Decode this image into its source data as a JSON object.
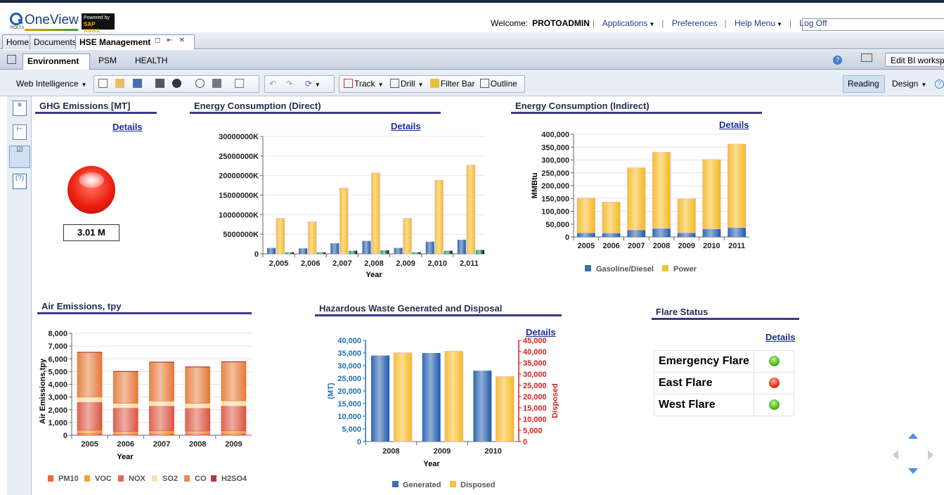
{
  "app": {
    "logo_name": "OneView",
    "logo_sub": "ROLTA",
    "hana_line1": "Powered by",
    "hana_line2": "SAP HANA",
    "welcome_label": "Welcome:",
    "user": "PROTOADMIN",
    "applications": "Applications",
    "preferences": "Preferences",
    "help_menu": "Help Menu",
    "logoff": "Log Off"
  },
  "doc_tabs": [
    "Home",
    "Documents",
    "HSE Management"
  ],
  "sub_tabs": [
    "Environment",
    "PSM",
    "HEALTH"
  ],
  "edit_bi": "Edit BI workspace",
  "toolbar": {
    "web_intelligence": "Web Intelligence",
    "track": "Track",
    "drill": "Drill",
    "filter_bar": "Filter Bar",
    "outline": "Outline",
    "reading": "Reading",
    "design": "Design"
  },
  "details_label": "Details",
  "ghg": {
    "title": "GHG Emissions [MT]",
    "value": "3.01 M",
    "status_color": "#e8301a"
  },
  "energy_direct": {
    "title": "Energy Consumption (Direct)",
    "chart_data": {
      "type": "bar",
      "categories": [
        "2,005",
        "2,006",
        "2,007",
        "2,008",
        "2,009",
        "2,010",
        "2,011"
      ],
      "xlabel": "Year",
      "ylim": [
        0,
        30000000
      ],
      "yticks": [
        "0",
        "5000000K",
        "10000000K",
        "15000000K",
        "20000000K",
        "25000000K",
        "30000000K"
      ],
      "series": [
        {
          "color": "#3a6fb5",
          "values": [
            1500000,
            1400000,
            2700000,
            3300000,
            1500000,
            3100000,
            3600000
          ]
        },
        {
          "color": "#f5c23a",
          "values": [
            9100000,
            8200000,
            16800000,
            20700000,
            9100000,
            18800000,
            22700000
          ]
        },
        {
          "color": "#1fa878",
          "values": [
            400000,
            400000,
            800000,
            900000,
            400000,
            800000,
            1000000
          ]
        }
      ]
    }
  },
  "energy_indirect": {
    "title": "Energy Consumption (Indirect)",
    "chart_data": {
      "type": "bar",
      "stacked": true,
      "categories": [
        "2005",
        "2006",
        "2007",
        "2008",
        "2009",
        "2010",
        "2011"
      ],
      "ylabel": "MMBtu",
      "ylim": [
        0,
        400000
      ],
      "yticks": [
        "0",
        "50,000",
        "100,000",
        "150,000",
        "200,000",
        "250,000",
        "300,000",
        "350,000",
        "400,000"
      ],
      "legend": "bottom",
      "series": [
        {
          "name": "Gasoline/Diesel",
          "color": "#3a6fb5",
          "values": [
            16000,
            15000,
            27000,
            33000,
            16000,
            31000,
            36000
          ]
        },
        {
          "name": "Power",
          "color": "#f5c23a",
          "values": [
            136000,
            121000,
            243000,
            298000,
            133000,
            271000,
            326000
          ]
        }
      ]
    }
  },
  "air": {
    "title": "Air Emissions, tpy",
    "chart_data": {
      "type": "bar",
      "stacked": true,
      "categories": [
        "2005",
        "2006",
        "2007",
        "2008",
        "2009"
      ],
      "xlabel": "Year",
      "ylabel": "Air Emissions,tpy",
      "ylim": [
        0,
        8000
      ],
      "yticks": [
        "0",
        "1,000",
        "2,000",
        "3,000",
        "4,000",
        "5,000",
        "6,000",
        "7,000",
        "8,000"
      ],
      "legend": "bottom",
      "series": [
        {
          "name": "PM10",
          "color": "#f06a30",
          "values": [
            150,
            100,
            130,
            120,
            130
          ]
        },
        {
          "name": "VOC",
          "color": "#f5a030",
          "values": [
            250,
            200,
            220,
            210,
            220
          ]
        },
        {
          "name": "NOX",
          "color": "#e06a5a",
          "values": [
            2200,
            1850,
            1950,
            1800,
            1950
          ]
        },
        {
          "name": "SO2",
          "color": "#fbe0b0",
          "values": [
            400,
            350,
            380,
            370,
            400
          ]
        },
        {
          "name": "CO",
          "color": "#e88a50",
          "values": [
            3500,
            2500,
            3050,
            2850,
            3050
          ]
        },
        {
          "name": "H2SO4",
          "color": "#b03a3a",
          "values": [
            20,
            20,
            20,
            20,
            20
          ]
        }
      ]
    }
  },
  "hazwaste": {
    "title": "Hazardous Waste Generated and Disposal",
    "chart_data": {
      "type": "bar",
      "categories": [
        "2008",
        "2009",
        "2010"
      ],
      "xlabel": "Year",
      "ylabel_left": "(MT)",
      "ylabel_right": "Disposed",
      "ylim": [
        0,
        40000
      ],
      "ylim_right": [
        0,
        45000
      ],
      "yticks_left": [
        "0",
        "5,000",
        "10,000",
        "15,000",
        "20,000",
        "25,000",
        "30,000",
        "35,000",
        "40,000"
      ],
      "yticks_right": [
        "0",
        "5,000",
        "10,000",
        "15,000",
        "20,000",
        "25,000",
        "30,000",
        "35,000",
        "40,000",
        "45,000"
      ],
      "legend": "bottom",
      "series": [
        {
          "name": "Generated",
          "axis": "left",
          "color": "#3a6fb5",
          "values": [
            34000,
            35000,
            28000
          ]
        },
        {
          "name": "Disposed",
          "axis": "right",
          "color": "#f5c23a",
          "values": [
            39500,
            40200,
            29000
          ]
        }
      ]
    }
  },
  "flare": {
    "title": "Flare Status",
    "rows": [
      {
        "name": "Emergency Flare",
        "status": "green"
      },
      {
        "name": "East Flare",
        "status": "red"
      },
      {
        "name": "West Flare",
        "status": "green"
      }
    ]
  }
}
